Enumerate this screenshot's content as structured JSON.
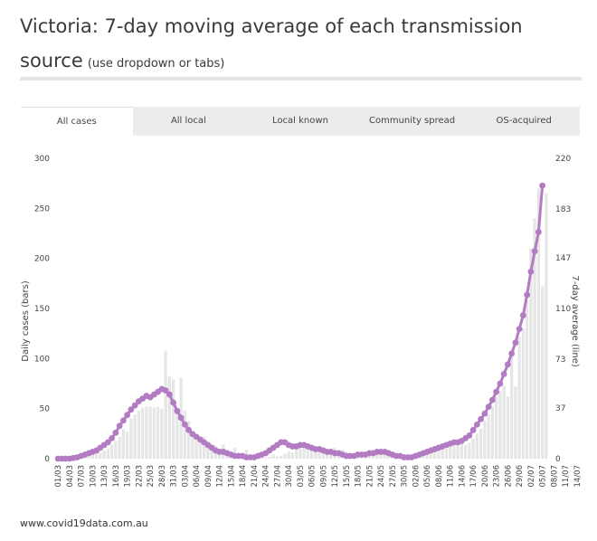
{
  "title": {
    "main": "Victoria: 7-day moving average of each transmission source",
    "sub": "(use dropdown or tabs)"
  },
  "tabs": [
    {
      "label": "All cases",
      "active": true
    },
    {
      "label": "All local",
      "active": false
    },
    {
      "label": "Local known",
      "active": false
    },
    {
      "label": "Community spread",
      "active": false
    },
    {
      "label": "OS-acquired",
      "active": false
    }
  ],
  "footer": "www.covid19data.com.au",
  "colors": {
    "bars": "#e6e6e6",
    "line": "#b27bc2",
    "tabs_bg": "#ececec"
  },
  "chart_data": {
    "type": "bar",
    "ylabel": "Daily cases (bars)",
    "y2label": "7-day average (line)",
    "ylim": [
      0,
      300
    ],
    "y2lim": [
      0,
      220
    ],
    "yticks": [
      0,
      50,
      100,
      150,
      200,
      250,
      300
    ],
    "y2ticks": [
      0,
      37,
      73,
      110,
      147,
      183,
      220
    ],
    "x_tick_labels": [
      "01/03",
      "04/03",
      "07/03",
      "10/03",
      "13/03",
      "16/03",
      "19/03",
      "22/03",
      "25/03",
      "28/03",
      "31/03",
      "03/04",
      "06/04",
      "09/04",
      "12/04",
      "15/04",
      "18/04",
      "21/04",
      "24/04",
      "27/04",
      "30/04",
      "03/05",
      "06/05",
      "09/05",
      "12/05",
      "15/05",
      "18/05",
      "21/05",
      "24/05",
      "27/05",
      "30/05",
      "02/06",
      "05/06",
      "08/06",
      "11/06",
      "14/06",
      "17/06",
      "20/06",
      "23/06",
      "26/06",
      "29/06",
      "02/07",
      "05/07",
      "08/07",
      "11/07",
      "14/07"
    ],
    "series": [
      {
        "type": "bar",
        "values": [
          0,
          0,
          0,
          0,
          1,
          1,
          2,
          2,
          3,
          4,
          5,
          6,
          8,
          10,
          14,
          18,
          22,
          30,
          27,
          40,
          44,
          48,
          51,
          52,
          52,
          51,
          52,
          50,
          108,
          82,
          79,
          47,
          81,
          48,
          38,
          28,
          18,
          19,
          22,
          17,
          12,
          13,
          10,
          14,
          8,
          5,
          11,
          6,
          4,
          9,
          3,
          3,
          5,
          2,
          1,
          2,
          4,
          2,
          3,
          5,
          7,
          6,
          9,
          14,
          15,
          13,
          9,
          8,
          11,
          10,
          7,
          9,
          11,
          8,
          9,
          7,
          5,
          4,
          6,
          3,
          3,
          4,
          4,
          6,
          7,
          5,
          6,
          5,
          4,
          3,
          1,
          2,
          0,
          2,
          2,
          4,
          5,
          6,
          8,
          9,
          12,
          10,
          13,
          15,
          17,
          18,
          14,
          16,
          20,
          25,
          30,
          38,
          44,
          52,
          62,
          68,
          73,
          62,
          105,
          72,
          122,
          130,
          158,
          210,
          240,
          270,
          172,
          265
        ]
      },
      {
        "type": "line",
        "axis": "right",
        "values": [
          0,
          0,
          0,
          0,
          0.5,
          1,
          2,
          3,
          4,
          5,
          6,
          8,
          10,
          12,
          15,
          19,
          24,
          28,
          32,
          36,
          39,
          42,
          44,
          46,
          45,
          47,
          49,
          51,
          50,
          47,
          41,
          35,
          30,
          25,
          21,
          18,
          16,
          14,
          12,
          10,
          8,
          6,
          5,
          5,
          4,
          3,
          2,
          2,
          2,
          1,
          1,
          1,
          2,
          3,
          4,
          6,
          8,
          10,
          12,
          12,
          10,
          9,
          9,
          10,
          10,
          9,
          8,
          7,
          7,
          6,
          5,
          5,
          4,
          4,
          3,
          2,
          2,
          2,
          3,
          3,
          3,
          4,
          4,
          5,
          5,
          5,
          4,
          3,
          2,
          2,
          1,
          1,
          1,
          2,
          3,
          4,
          5,
          6,
          7,
          8,
          9,
          10,
          11,
          12,
          12,
          13,
          15,
          17,
          21,
          25,
          29,
          33,
          38,
          43,
          49,
          55,
          62,
          69,
          77,
          85,
          95,
          105,
          120,
          137,
          152,
          166,
          200
        ]
      }
    ]
  }
}
